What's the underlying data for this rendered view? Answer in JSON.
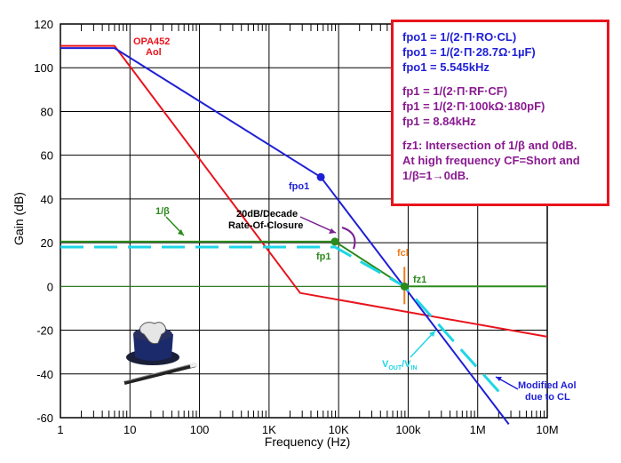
{
  "chart_data": {
    "type": "line",
    "xscale": "log",
    "xlim": [
      1,
      10000000
    ],
    "ylim": [
      -60,
      120
    ],
    "x_ticks": [
      1,
      10,
      100,
      1000,
      10000,
      100000,
      1000000,
      10000000
    ],
    "x_tick_labels": [
      "1",
      "10",
      "100",
      "1K",
      "10K",
      "100k",
      "1M",
      "10M"
    ],
    "y_ticks": [
      -60,
      -40,
      -20,
      0,
      20,
      40,
      60,
      80,
      100,
      120
    ],
    "y_tick_labels": [
      "-60",
      "-40",
      "-20",
      "0",
      "20",
      "40",
      "60",
      "80",
      "100",
      "120"
    ],
    "xlabel": "Frequency (Hz)",
    "ylabel": "Gain (dB)",
    "grid": true,
    "series": [
      {
        "name": "OPA452 Aol",
        "color": "#e8141d",
        "x": [
          1,
          6,
          2800,
          10000000
        ],
        "y": [
          110,
          110,
          -3,
          -23
        ]
      },
      {
        "name": "Modified Aol due to CL",
        "color": "#1f1fd6",
        "x": [
          1,
          6,
          5545,
          2800000
        ],
        "y": [
          109,
          109,
          50,
          -63
        ]
      },
      {
        "name": "1/β",
        "color": "#2a8a1a",
        "x": [
          1,
          8840,
          88400,
          10000000
        ],
        "y": [
          20.5,
          20.5,
          0,
          0
        ]
      },
      {
        "name": "VOUT/VIN",
        "color": "#1ed6e6",
        "dashed": true,
        "x": [
          1,
          8840,
          88400,
          2000000
        ],
        "y": [
          18,
          18,
          0,
          -48
        ]
      }
    ],
    "zero_line": {
      "color": "#2a8a1a",
      "y": 0
    },
    "points": [
      {
        "label": "fpo1",
        "x": 5545,
        "y": 50,
        "color": "#1f1fd6"
      },
      {
        "label": "fp1",
        "x": 8840,
        "y": 20.5,
        "color": "#2a8a1a"
      },
      {
        "label": "fz1",
        "x": 88400,
        "y": 0,
        "color": "#2a8a1a"
      }
    ],
    "annotations": [
      {
        "text": "OPA452",
        "color": "#e8141d"
      },
      {
        "text": "Aol",
        "color": "#e8141d"
      },
      {
        "text": "fpo1",
        "color": "#1f1fd6"
      },
      {
        "text": "1/β",
        "color": "#2a8a1a"
      },
      {
        "text": "20dB/Decade",
        "color": "#000000"
      },
      {
        "text": "Rate-Of-Closure",
        "color": "#000000"
      },
      {
        "text": "fp1",
        "color": "#2a8a1a"
      },
      {
        "text": "fcl",
        "color": "#f07a1a"
      },
      {
        "text": "fz1",
        "color": "#2a8a1a"
      },
      {
        "text": "Modified Aol",
        "color": "#1f1fd6"
      },
      {
        "text": "due to CL",
        "color": "#1f1fd6"
      }
    ],
    "vout_label": {
      "main": "V",
      "sub1": "OUT",
      "mid": "/V",
      "sub2": "IN",
      "color": "#1ed6e6"
    }
  },
  "infobox": {
    "line1": "fpo1 = 1/(2·Π·RO·CL)",
    "line2": "fpo1 = 1/(2·Π·28.7Ω·1µF)",
    "line3": "fpo1 = 5.545kHz",
    "line4": "fp1 = 1/(2·Π·RF·CF)",
    "line5": "fp1 = 1/(2·Π·100kΩ·180pF)",
    "line6": "fp1 = 8.84kHz",
    "line7": "fz1: Intersection of 1/β and 0dB.",
    "line8": "At high frequency CF=Short and",
    "line9": "1/β=1→0dB."
  },
  "logo": {
    "icon": "top-hat-magic-wand-icon"
  }
}
